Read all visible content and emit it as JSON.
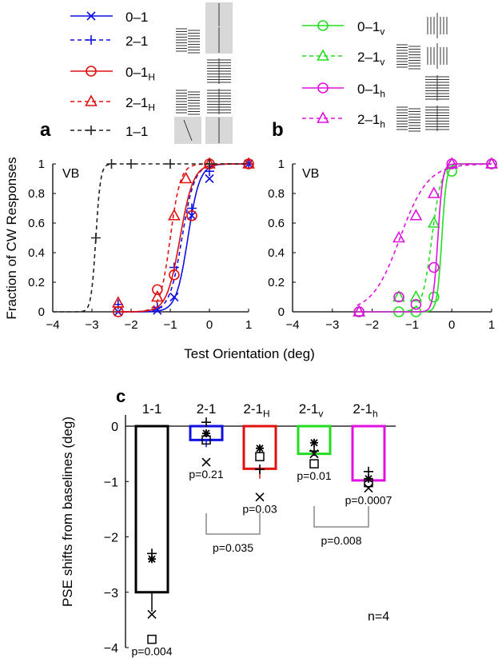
{
  "chart_data": [
    {
      "type": "line",
      "panel_label": "a",
      "annotation": "VB",
      "ylabel": "Fraction of CW Responses",
      "xlabel": "Test Orientation (deg)",
      "xlim": [
        -4,
        1
      ],
      "ylim": [
        0,
        1
      ],
      "xticks": [
        "−4",
        "−3",
        "−2",
        "−1",
        "0",
        "1"
      ],
      "yticks": [
        "0",
        "0.2",
        "0.4",
        "0.6",
        "0.8",
        "1"
      ],
      "series": [
        {
          "name": "0–1",
          "sub": "",
          "color": "#1010e0",
          "dash": false,
          "marker": "x",
          "x": [
            -2.33,
            -1.33,
            -0.9,
            -0.45,
            0,
            1
          ],
          "y": [
            0,
            0.01,
            0.1,
            0.65,
            0.9,
            1
          ],
          "fit_pse": -0.55,
          "fit_slope": 0.15
        },
        {
          "name": "2–1",
          "sub": "",
          "color": "#1010e0",
          "dash": true,
          "marker": "+",
          "x": [
            -2.33,
            -1.33,
            -0.9,
            -0.45,
            0,
            1
          ],
          "y": [
            0.05,
            0.03,
            0.3,
            0.7,
            0.95,
            1
          ],
          "fit_pse": -0.7,
          "fit_slope": 0.16
        },
        {
          "name": "0–1",
          "sub": "H",
          "color": "#e01010",
          "dash": false,
          "marker": "o",
          "x": [
            -2.33,
            -1.33,
            -0.9,
            -0.45,
            0,
            1
          ],
          "y": [
            0,
            0.15,
            0.25,
            0.65,
            1,
            1
          ],
          "fit_pse": -0.75,
          "fit_slope": 0.17
        },
        {
          "name": "2–1",
          "sub": "H",
          "color": "#e01010",
          "dash": true,
          "marker": "^",
          "x": [
            -2.33,
            -1.33,
            -0.9,
            -0.6,
            0,
            1
          ],
          "y": [
            0.06,
            0.1,
            0.65,
            0.9,
            1,
            1
          ],
          "fit_pse": -1.0,
          "fit_slope": 0.13
        },
        {
          "name": "1–1",
          "sub": "",
          "color": "#222222",
          "dash": true,
          "marker": "+",
          "x": [
            -2.9,
            -2.5,
            -2.0,
            -1.0,
            0
          ],
          "y": [
            0.5,
            1,
            1,
            1,
            1
          ],
          "fit_pse": -2.9,
          "fit_slope": 0.06
        }
      ]
    },
    {
      "type": "line",
      "panel_label": "b",
      "annotation": "VB",
      "xlim": [
        -4,
        1
      ],
      "ylim": [
        0,
        1
      ],
      "xticks": [
        "−4",
        "−3",
        "−2",
        "−1",
        "0",
        "1"
      ],
      "yticks": [
        "0",
        "0.2",
        "0.4",
        "0.6",
        "0.8",
        "1"
      ],
      "series": [
        {
          "name": "0–1",
          "sub": "v",
          "color": "#22dd22",
          "dash": false,
          "marker": "o",
          "x": [
            -2.33,
            -1.33,
            -0.9,
            -0.45,
            0,
            1
          ],
          "y": [
            0,
            0,
            0,
            0.1,
            0.95,
            1
          ],
          "fit_pse": -0.25,
          "fit_slope": 0.06
        },
        {
          "name": "2–1",
          "sub": "v",
          "color": "#22dd22",
          "dash": true,
          "marker": "^",
          "x": [
            -2.33,
            -1.33,
            -0.9,
            -0.45,
            0,
            1
          ],
          "y": [
            0,
            0.1,
            0.1,
            0.6,
            1,
            1
          ],
          "fit_pse": -0.5,
          "fit_slope": 0.12
        },
        {
          "name": "0–1",
          "sub": "h",
          "color": "#e010e0",
          "dash": false,
          "marker": "o",
          "x": [
            -2.33,
            -1.33,
            -0.9,
            -0.45,
            0,
            1
          ],
          "y": [
            0,
            0.1,
            0.05,
            0.3,
            1,
            1
          ],
          "fit_pse": -0.35,
          "fit_slope": 0.06
        },
        {
          "name": "2–1",
          "sub": "h",
          "color": "#e010e0",
          "dash": true,
          "marker": "^",
          "x": [
            -2.33,
            -1.33,
            -0.9,
            -0.45,
            0,
            1
          ],
          "y": [
            0,
            0.5,
            0.65,
            0.8,
            1,
            1
          ],
          "fit_pse": -1.3,
          "fit_slope": 0.35
        }
      ]
    },
    {
      "type": "bar",
      "panel_label": "c",
      "ylabel": "PSE shifts from baselines (deg)",
      "ylim": [
        -4,
        0
      ],
      "yticks": [
        "0",
        "−1",
        "−2",
        "−3",
        "−4"
      ],
      "note": "n=4",
      "categories": [
        {
          "name": "1-1",
          "sub": ""
        },
        {
          "name": "2-1",
          "sub": ""
        },
        {
          "name": "2-1",
          "sub": "H"
        },
        {
          "name": "2-1",
          "sub": "v"
        },
        {
          "name": "2-1",
          "sub": "h"
        }
      ],
      "colors": [
        "#000000",
        "#1010e0",
        "#e01010",
        "#22dd22",
        "#e010e0"
      ],
      "values": [
        -3.0,
        -0.25,
        -0.77,
        -0.5,
        -0.98
      ],
      "error_low": [
        -3.35,
        -0.38,
        -0.95,
        -0.5,
        -0.98
      ],
      "p_values": [
        "p=0.004",
        "p=0.21",
        "p=0.03",
        "p=0.01",
        "p=0.0007"
      ],
      "subjects": {
        "plus": [
          -2.3,
          0.07,
          -0.78,
          -0.45,
          -0.82
        ],
        "star": [
          -2.4,
          -0.13,
          -0.4,
          -0.3,
          -0.95
        ],
        "cross": [
          -3.4,
          -0.65,
          -1.28,
          -0.5,
          -1.12
        ],
        "square": [
          -3.85,
          -0.25,
          -0.55,
          -0.68,
          -1.02
        ]
      },
      "comparisons": [
        {
          "between": [
            1,
            2
          ],
          "label": "p=0.035"
        },
        {
          "between": [
            3,
            4
          ],
          "label": "p=0.008"
        }
      ]
    }
  ]
}
